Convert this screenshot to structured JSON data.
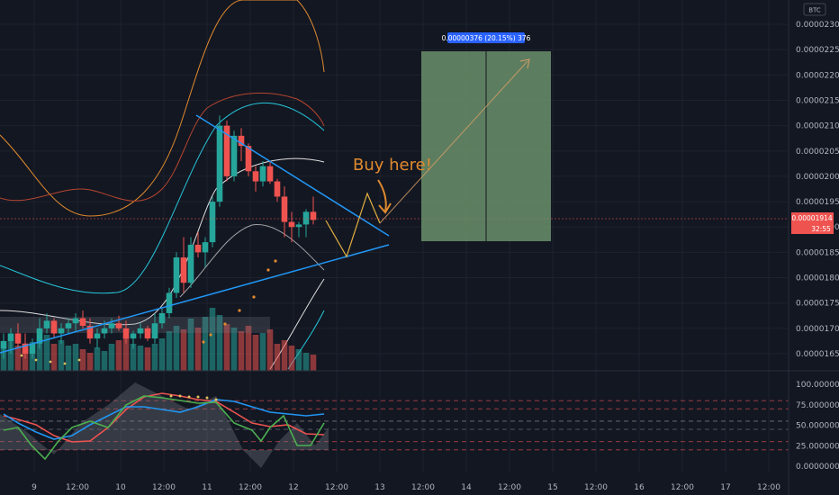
{
  "currency_badge": "BTC",
  "annotation": "Buy here!",
  "target_label": "0.00000376 (20.15%) 376",
  "last_price": "0.00001914",
  "countdown": "32:55",
  "colors": {
    "background": "#131722",
    "up": "#26a69a",
    "down": "#ef5350",
    "trendline": "#2196f3",
    "target_box": "#6b8f6b",
    "annotation": "#e08a2e",
    "price_tag": "#ef5350",
    "target_tag": "#2962ff"
  },
  "chart_data": [
    {
      "type": "candlestick",
      "title": "",
      "price_axis_ticks": [
        "0.00002300",
        "0.00002250",
        "0.00002200",
        "0.00002150",
        "0.00002100",
        "0.00002050",
        "0.00002000",
        "0.00001950",
        "0.00001900",
        "0.00001850",
        "0.00001800",
        "0.00001750",
        "0.00001700",
        "0.00001650"
      ],
      "ylim": [
        1.615e-05,
        2.315e-05
      ],
      "time_axis_ticks": [
        "9",
        "12:00",
        "10",
        "12:00",
        "11",
        "12:00",
        "12",
        "12:00",
        "13",
        "12:00",
        "14",
        "12:00",
        "15",
        "12:00",
        "16",
        "12:00",
        "17",
        "12:00"
      ],
      "candles": [
        {
          "o": 1.66e-05,
          "h": 1.69e-05,
          "l": 1.64e-05,
          "c": 1.675e-05
        },
        {
          "o": 1.675e-05,
          "h": 1.7e-05,
          "l": 1.65e-05,
          "c": 1.69e-05
        },
        {
          "o": 1.69e-05,
          "h": 1.71e-05,
          "l": 1.66e-05,
          "c": 1.67e-05
        },
        {
          "o": 1.67e-05,
          "h": 1.69e-05,
          "l": 1.64e-05,
          "c": 1.65e-05
        },
        {
          "o": 1.65e-05,
          "h": 1.68e-05,
          "l": 1.64e-05,
          "c": 1.67e-05
        },
        {
          "o": 1.67e-05,
          "h": 1.72e-05,
          "l": 1.66e-05,
          "c": 1.7e-05
        },
        {
          "o": 1.7e-05,
          "h": 1.73e-05,
          "l": 1.69e-05,
          "c": 1.715e-05
        },
        {
          "o": 1.715e-05,
          "h": 1.72e-05,
          "l": 1.68e-05,
          "c": 1.69e-05
        },
        {
          "o": 1.69e-05,
          "h": 1.71e-05,
          "l": 1.67e-05,
          "c": 1.7e-05
        },
        {
          "o": 1.7e-05,
          "h": 1.72e-05,
          "l": 1.69e-05,
          "c": 1.71e-05
        },
        {
          "o": 1.71e-05,
          "h": 1.73e-05,
          "l": 1.695e-05,
          "c": 1.72e-05
        },
        {
          "o": 1.72e-05,
          "h": 1.735e-05,
          "l": 1.7e-05,
          "c": 1.705e-05
        },
        {
          "o": 1.705e-05,
          "h": 1.72e-05,
          "l": 1.67e-05,
          "c": 1.68e-05
        },
        {
          "o": 1.68e-05,
          "h": 1.7e-05,
          "l": 1.66e-05,
          "c": 1.69e-05
        },
        {
          "o": 1.69e-05,
          "h": 1.715e-05,
          "l": 1.68e-05,
          "c": 1.7e-05
        },
        {
          "o": 1.7e-05,
          "h": 1.72e-05,
          "l": 1.69e-05,
          "c": 1.71e-05
        },
        {
          "o": 1.71e-05,
          "h": 1.725e-05,
          "l": 1.695e-05,
          "c": 1.7e-05
        },
        {
          "o": 1.7e-05,
          "h": 1.715e-05,
          "l": 1.67e-05,
          "c": 1.68e-05
        },
        {
          "o": 1.68e-05,
          "h": 1.695e-05,
          "l": 1.66e-05,
          "c": 1.69e-05
        },
        {
          "o": 1.69e-05,
          "h": 1.71e-05,
          "l": 1.68e-05,
          "c": 1.7e-05
        },
        {
          "o": 1.7e-05,
          "h": 1.705e-05,
          "l": 1.675e-05,
          "c": 1.68e-05
        },
        {
          "o": 1.68e-05,
          "h": 1.73e-05,
          "l": 1.67e-05,
          "c": 1.71e-05
        },
        {
          "o": 1.71e-05,
          "h": 1.74e-05,
          "l": 1.7e-05,
          "c": 1.73e-05
        },
        {
          "o": 1.73e-05,
          "h": 1.78e-05,
          "l": 1.72e-05,
          "c": 1.77e-05
        },
        {
          "o": 1.77e-05,
          "h": 1.85e-05,
          "l": 1.76e-05,
          "c": 1.84e-05
        },
        {
          "o": 1.84e-05,
          "h": 1.88e-05,
          "l": 1.77e-05,
          "c": 1.79e-05
        },
        {
          "o": 1.79e-05,
          "h": 1.88e-05,
          "l": 1.78e-05,
          "c": 1.865e-05
        },
        {
          "o": 1.865e-05,
          "h": 1.89e-05,
          "l": 1.84e-05,
          "c": 1.85e-05
        },
        {
          "o": 1.85e-05,
          "h": 1.88e-05,
          "l": 1.82e-05,
          "c": 1.87e-05
        },
        {
          "o": 1.87e-05,
          "h": 1.96e-05,
          "l": 1.86e-05,
          "c": 1.95e-05
        },
        {
          "o": 1.95e-05,
          "h": 2.12e-05,
          "l": 1.94e-05,
          "c": 2.1e-05
        },
        {
          "o": 2.1e-05,
          "h": 2.11e-05,
          "l": 1.99e-05,
          "c": 2e-05
        },
        {
          "o": 2e-05,
          "h": 2.09e-05,
          "l": 1.99e-05,
          "c": 2.08e-05
        },
        {
          "o": 2.08e-05,
          "h": 2.095e-05,
          "l": 2.03e-05,
          "c": 2.06e-05
        },
        {
          "o": 2.06e-05,
          "h": 2.065e-05,
          "l": 2e-05,
          "c": 2.01e-05
        },
        {
          "o": 2.01e-05,
          "h": 2.02e-05,
          "l": 1.97e-05,
          "c": 1.99e-05
        },
        {
          "o": 1.99e-05,
          "h": 2.03e-05,
          "l": 1.98e-05,
          "c": 2.02e-05
        },
        {
          "o": 2.02e-05,
          "h": 2.03e-05,
          "l": 1.985e-05,
          "c": 1.99e-05
        },
        {
          "o": 1.99e-05,
          "h": 1.995e-05,
          "l": 1.95e-05,
          "c": 1.96e-05
        },
        {
          "o": 1.96e-05,
          "h": 1.98e-05,
          "l": 1.88e-05,
          "c": 1.91e-05
        },
        {
          "o": 1.91e-05,
          "h": 1.93e-05,
          "l": 1.87e-05,
          "c": 1.9e-05
        },
        {
          "o": 1.9e-05,
          "h": 1.91e-05,
          "l": 1.88e-05,
          "c": 1.905e-05
        },
        {
          "o": 1.905e-05,
          "h": 1.935e-05,
          "l": 1.88e-05,
          "c": 1.93e-05
        },
        {
          "o": 1.93e-05,
          "h": 1.96e-05,
          "l": 1.905e-05,
          "c": 1.914e-05
        }
      ],
      "oscillator_ticks": [
        "100.00000000",
        "75.00000000",
        "50.00000000",
        "25.00000000",
        "0.00000000"
      ],
      "oscillator_ylim": [
        -10,
        110
      ]
    }
  ]
}
